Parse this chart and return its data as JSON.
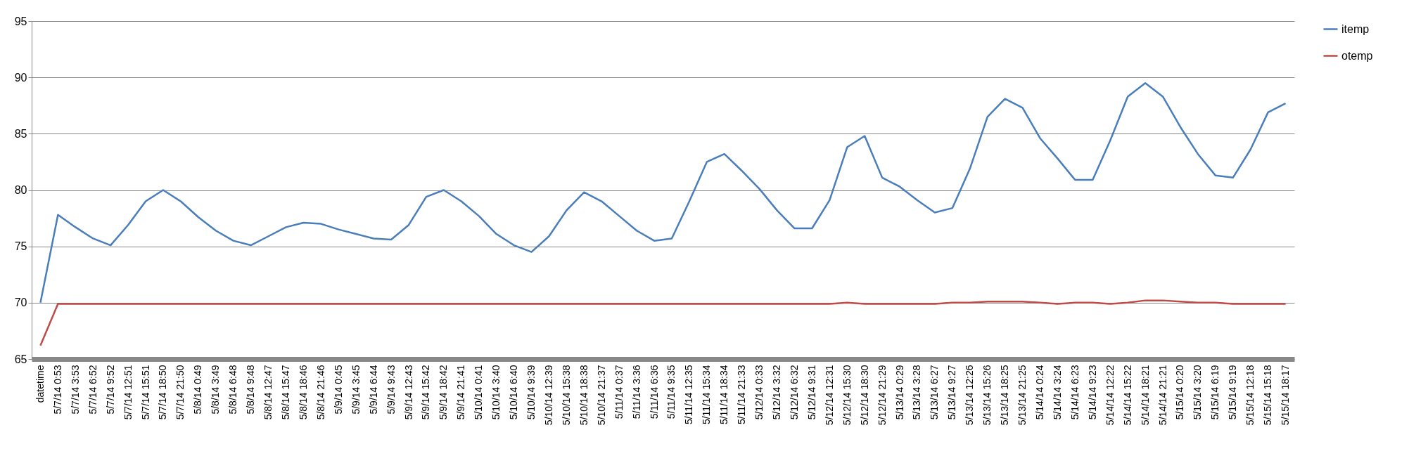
{
  "chart_data": {
    "type": "line",
    "categories": [
      "datetime",
      "5/7/14 0:53",
      "5/7/14 3:53",
      "5/7/14 6:52",
      "5/7/14 9:52",
      "5/7/14 12:51",
      "5/7/14 15:51",
      "5/7/14 18:50",
      "5/7/14 21:50",
      "5/8/14 0:49",
      "5/8/14 3:49",
      "5/8/14 6:48",
      "5/8/14 9:48",
      "5/8/14 12:47",
      "5/8/14 15:47",
      "5/8/14 18:46",
      "5/8/14 21:46",
      "5/9/14 0:45",
      "5/9/14 3:45",
      "5/9/14 6:44",
      "5/9/14 9:43",
      "5/9/14 12:43",
      "5/9/14 15:42",
      "5/9/14 18:42",
      "5/9/14 21:41",
      "5/10/14 0:41",
      "5/10/14 3:40",
      "5/10/14 6:40",
      "5/10/14 9:39",
      "5/10/14 12:39",
      "5/10/14 15:38",
      "5/10/14 18:38",
      "5/10/14 21:37",
      "5/11/14 0:37",
      "5/11/14 3:36",
      "5/11/14 6:36",
      "5/11/14 9:35",
      "5/11/14 12:35",
      "5/11/14 15:34",
      "5/11/14 18:34",
      "5/11/14 21:33",
      "5/12/14 0:33",
      "5/12/14 3:32",
      "5/12/14 6:32",
      "5/12/14 9:31",
      "5/12/14 12:31",
      "5/12/14 15:30",
      "5/12/14 18:30",
      "5/12/14 21:29",
      "5/13/14 0:29",
      "5/13/14 3:28",
      "5/13/14 6:27",
      "5/13/14 9:27",
      "5/13/14 12:26",
      "5/13/14 15:26",
      "5/13/14 18:25",
      "5/13/14 21:25",
      "5/14/14 0:24",
      "5/14/14 3:24",
      "5/14/14 6:23",
      "5/14/14 9:23",
      "5/14/14 12:22",
      "5/14/14 15:22",
      "5/14/14 18:21",
      "5/14/14 21:21",
      "5/15/14 0:20",
      "5/15/14 3:20",
      "5/15/14 6:19",
      "5/15/14 9:19",
      "5/15/14 12:18",
      "5/15/14 15:18",
      "5/15/14 18:17"
    ],
    "series": [
      {
        "name": "itemp",
        "color": "#4a7ebb",
        "values": [
          70,
          77.8,
          76.7,
          75.7,
          75.1,
          76.9,
          79,
          80,
          79,
          77.6,
          76.4,
          75.5,
          75.1,
          75.9,
          76.7,
          77.1,
          77,
          76.5,
          76.1,
          75.7,
          75.6,
          76.9,
          79.4,
          80,
          79,
          77.7,
          76.1,
          75.1,
          74.5,
          75.9,
          78.2,
          79.8,
          79,
          77.7,
          76.4,
          75.5,
          75.7,
          79,
          82.5,
          83.2,
          81.7,
          80.1,
          78.2,
          76.6,
          76.6,
          79.1,
          83.8,
          84.8,
          81.1,
          80.3,
          79.1,
          78,
          78.4,
          81.9,
          86.5,
          88.1,
          87.3,
          84.6,
          82.8,
          80.9,
          80.9,
          84.4,
          88.3,
          89.5,
          88.3,
          85.6,
          83.2,
          81.3,
          81.1,
          83.6,
          86.9,
          87.7
        ]
      },
      {
        "name": "otemp",
        "color": "#be4b48",
        "values": [
          66.2,
          69.9,
          69.9,
          69.9,
          69.9,
          69.9,
          69.9,
          69.9,
          69.9,
          69.9,
          69.9,
          69.9,
          69.9,
          69.9,
          69.9,
          69.9,
          69.9,
          69.9,
          69.9,
          69.9,
          69.9,
          69.9,
          69.9,
          69.9,
          69.9,
          69.9,
          69.9,
          69.9,
          69.9,
          69.9,
          69.9,
          69.9,
          69.9,
          69.9,
          69.9,
          69.9,
          69.9,
          69.9,
          69.9,
          69.9,
          69.9,
          69.9,
          69.9,
          69.9,
          69.9,
          69.9,
          70,
          69.9,
          69.9,
          69.9,
          69.9,
          69.9,
          70,
          70,
          70.1,
          70.1,
          70.1,
          70,
          69.9,
          70,
          70,
          69.9,
          70,
          70.2,
          70.2,
          70.1,
          70,
          70,
          69.9,
          69.9,
          69.9,
          69.9
        ]
      }
    ],
    "ylim": [
      65,
      95
    ],
    "yticks": [
      65,
      70,
      75,
      80,
      85,
      90,
      95
    ],
    "grid": "y",
    "legend": "right"
  }
}
